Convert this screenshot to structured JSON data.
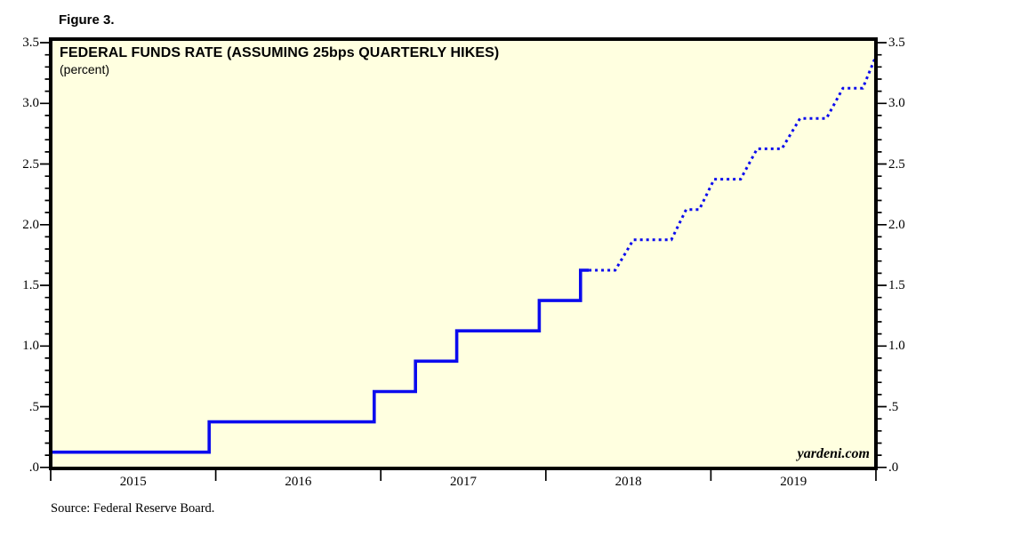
{
  "figure_label": "Figure 3.",
  "chart": {
    "title": "FEDERAL FUNDS RATE (ASSUMING 25bps QUARTERLY HIKES)",
    "subtitle": "(percent)",
    "watermark": "yardeni.com",
    "line_color": "#0B0BEE",
    "plot_background": "#FFFFE0",
    "border_color": "#000000"
  },
  "source_note": "Source: Federal Reserve Board.",
  "chart_data": {
    "type": "line",
    "title": "FEDERAL FUNDS RATE (ASSUMING 25bps QUARTERLY HIKES)",
    "ylabel": "percent",
    "xlabel": "",
    "xlim": [
      2015,
      2020
    ],
    "ylim": [
      0,
      3.5
    ],
    "y_major_step": 0.5,
    "y_minor_step": 0.1,
    "grid": "off",
    "legend": "none",
    "x_tick_labels": [
      "2015",
      "2016",
      "2017",
      "2018",
      "2019"
    ],
    "y_tick_labels_top_to_bottom": [
      "3.5",
      "3.0",
      "2.5",
      "2.0",
      "1.5",
      "1.0",
      ".5",
      ".0"
    ],
    "series": [
      {
        "name": "federal-funds-rate-actual",
        "style": "solid",
        "points": [
          [
            2015.0,
            0.125
          ],
          [
            2015.96,
            0.125
          ],
          [
            2015.96,
            0.375
          ],
          [
            2016.96,
            0.375
          ],
          [
            2016.96,
            0.625
          ],
          [
            2017.21,
            0.625
          ],
          [
            2017.21,
            0.875
          ],
          [
            2017.46,
            0.875
          ],
          [
            2017.46,
            1.125
          ],
          [
            2017.96,
            1.125
          ],
          [
            2017.96,
            1.375
          ],
          [
            2018.21,
            1.375
          ],
          [
            2018.21,
            1.625
          ],
          [
            2018.26,
            1.625
          ]
        ]
      },
      {
        "name": "federal-funds-rate-projected-25bps-quarterly",
        "style": "dotted",
        "points": [
          [
            2018.26,
            1.625
          ],
          [
            2018.42,
            1.625
          ],
          [
            2018.53,
            1.875
          ],
          [
            2018.76,
            1.875
          ],
          [
            2018.85,
            2.125
          ],
          [
            2018.93,
            2.125
          ],
          [
            2019.02,
            2.375
          ],
          [
            2019.18,
            2.375
          ],
          [
            2019.28,
            2.625
          ],
          [
            2019.43,
            2.625
          ],
          [
            2019.54,
            2.875
          ],
          [
            2019.7,
            2.875
          ],
          [
            2019.8,
            3.125
          ],
          [
            2019.92,
            3.125
          ],
          [
            2020.0,
            3.39
          ]
        ]
      }
    ]
  }
}
